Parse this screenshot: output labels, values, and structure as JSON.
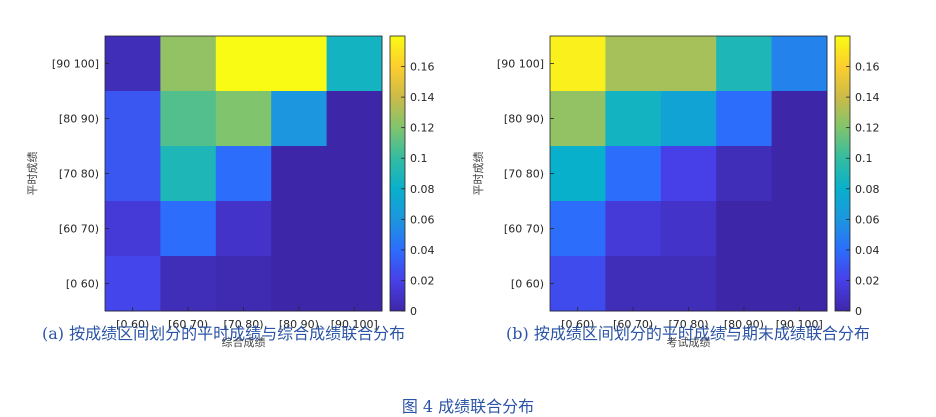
{
  "figure_caption": "图 4 成绩联合分布",
  "palette": [
    "#3e26a8",
    "#4740e8",
    "#2c6dfc",
    "#1c96de",
    "#09b0cc",
    "#33bca1",
    "#80c46d",
    "#cbbb48",
    "#fcce2e",
    "#f9fb14"
  ],
  "chart_data": [
    {
      "type": "heatmap",
      "caption": "(a) 按成绩区间划分的平时成绩与综合成绩联合分布",
      "xlabel": "综合成绩",
      "ylabel": "平时成绩",
      "x_categories": [
        "[0 60)",
        "[60 70)",
        "[70 80)",
        "[80 90)",
        "[90 100]"
      ],
      "y_categories": [
        "[90 100]",
        "[80 90)",
        "[70 80)",
        "[60 70)",
        "[0 60)"
      ],
      "values": [
        [
          0.005,
          0.125,
          0.18,
          0.18,
          0.085
        ],
        [
          0.03,
          0.108,
          0.12,
          0.06,
          0.0
        ],
        [
          0.03,
          0.09,
          0.04,
          0.0,
          0.0
        ],
        [
          0.015,
          0.04,
          0.01,
          0.0,
          0.0
        ],
        [
          0.022,
          0.005,
          0.003,
          0.0,
          0.0
        ]
      ],
      "colorbar": {
        "min": 0,
        "max": 0.18,
        "ticks": [
          "0",
          "0.02",
          "0.04",
          "0.06",
          "0.08",
          "0.1",
          "0.12",
          "0.14",
          "0.16"
        ]
      }
    },
    {
      "type": "heatmap",
      "caption": "(b) 按成绩区间划分的平时成绩与期末成绩联合分布",
      "xlabel": "考试成绩",
      "ylabel": "平时成绩",
      "x_categories": [
        "[0 60)",
        "[60 70)",
        "[70 80)",
        "[80 90)",
        "[90 100]"
      ],
      "y_categories": [
        "[90 100]",
        "[80 90)",
        "[70 80)",
        "[60 70)",
        "[0 60)"
      ],
      "values": [
        [
          0.175,
          0.13,
          0.13,
          0.09,
          0.05
        ],
        [
          0.125,
          0.085,
          0.07,
          0.04,
          0.0
        ],
        [
          0.08,
          0.04,
          0.02,
          0.005,
          0.0
        ],
        [
          0.04,
          0.015,
          0.01,
          0.0,
          0.0
        ],
        [
          0.025,
          0.005,
          0.005,
          0.0,
          0.0
        ]
      ],
      "colorbar": {
        "min": 0,
        "max": 0.18,
        "ticks": [
          "0",
          "0.02",
          "0.04",
          "0.06",
          "0.08",
          "0.1",
          "0.12",
          "0.14",
          "0.16"
        ]
      }
    }
  ]
}
